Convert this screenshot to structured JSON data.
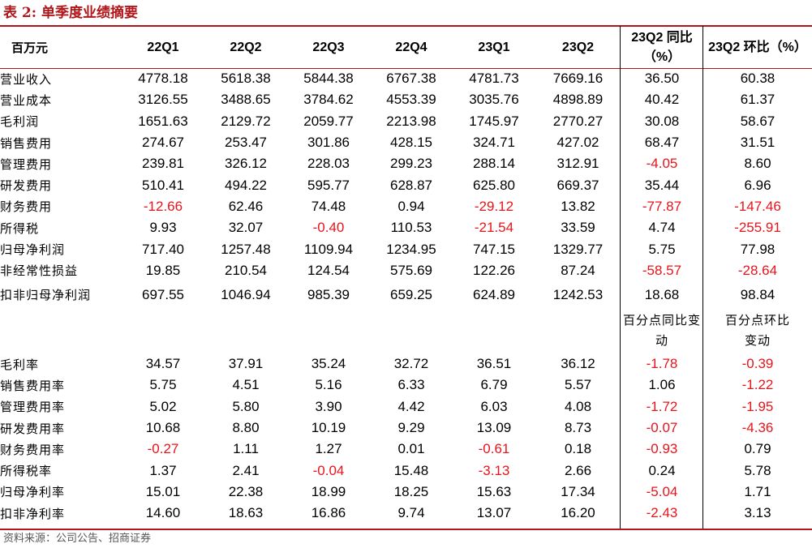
{
  "title": "表 2:  单季度业绩摘要",
  "source": "资料来源：公司公告、招商证券",
  "colors": {
    "accent": "#b0161a",
    "negative": "#e8141b"
  },
  "header": {
    "unit": "百万元",
    "cols": [
      "22Q1",
      "22Q2",
      "22Q3",
      "22Q4",
      "23Q1",
      "23Q2",
      "23Q2 同比（%）",
      "23Q2 环比（%）"
    ]
  },
  "rows": [
    {
      "label": "营业收入",
      "values": [
        "4778.18",
        "5618.38",
        "5844.38",
        "6767.38",
        "4781.73",
        "7669.16",
        "36.50",
        "60.38"
      ]
    },
    {
      "label": "营业成本",
      "values": [
        "3126.55",
        "3488.65",
        "3784.62",
        "4553.39",
        "3035.76",
        "4898.89",
        "40.42",
        "61.37"
      ]
    },
    {
      "label": "毛利润",
      "values": [
        "1651.63",
        "2129.72",
        "2059.77",
        "2213.98",
        "1745.97",
        "2770.27",
        "30.08",
        "58.67"
      ]
    },
    {
      "label": "销售费用",
      "values": [
        "274.67",
        "253.47",
        "301.86",
        "428.15",
        "324.71",
        "427.02",
        "68.47",
        "31.51"
      ]
    },
    {
      "label": "管理费用",
      "values": [
        "239.81",
        "326.12",
        "228.03",
        "299.23",
        "288.14",
        "312.91",
        "-4.05",
        "8.60"
      ]
    },
    {
      "label": "研发费用",
      "values": [
        "510.41",
        "494.22",
        "595.77",
        "628.87",
        "625.80",
        "669.37",
        "35.44",
        "6.96"
      ]
    },
    {
      "label": "财务费用",
      "values": [
        "-12.66",
        "62.46",
        "74.48",
        "0.94",
        "-29.12",
        "13.82",
        "-77.87",
        "-147.46"
      ]
    },
    {
      "label": "所得税",
      "values": [
        "9.93",
        "32.07",
        "-0.40",
        "110.53",
        "-21.54",
        "33.59",
        "4.74",
        "-255.91"
      ]
    },
    {
      "label": "归母净利润",
      "values": [
        "717.40",
        "1257.48",
        "1109.94",
        "1234.95",
        "747.15",
        "1329.77",
        "5.75",
        "77.98"
      ]
    },
    {
      "label": "非经常性损益",
      "values": [
        "19.85",
        "210.54",
        "124.54",
        "575.69",
        "122.26",
        "87.24",
        "-58.57",
        "-28.64"
      ]
    },
    {
      "label": "扣非归母净利润",
      "values": [
        "697.55",
        "1046.94",
        "985.39",
        "659.25",
        "624.89",
        "1242.53",
        "18.68",
        "98.84"
      ]
    }
  ],
  "ratio_header": {
    "yoy": "百分点同比变动",
    "qoq": "百分点环比变动"
  },
  "ratio_rows": [
    {
      "label": "毛利率",
      "values": [
        "34.57",
        "37.91",
        "35.24",
        "32.72",
        "36.51",
        "36.12",
        "-1.78",
        "-0.39"
      ]
    },
    {
      "label": "销售费用率",
      "values": [
        "5.75",
        "4.51",
        "5.16",
        "6.33",
        "6.79",
        "5.57",
        "1.06",
        "-1.22"
      ]
    },
    {
      "label": "管理费用率",
      "values": [
        "5.02",
        "5.80",
        "3.90",
        "4.42",
        "6.03",
        "4.08",
        "-1.72",
        "-1.95"
      ]
    },
    {
      "label": "研发费用率",
      "values": [
        "10.68",
        "8.80",
        "10.19",
        "9.29",
        "13.09",
        "8.73",
        "-0.07",
        "-4.36"
      ]
    },
    {
      "label": "财务费用率",
      "values": [
        "-0.27",
        "1.11",
        "1.27",
        "0.01",
        "-0.61",
        "0.18",
        "-0.93",
        "0.79"
      ]
    },
    {
      "label": "所得税率",
      "values": [
        "1.37",
        "2.41",
        "-0.04",
        "15.48",
        "-3.13",
        "2.66",
        "0.24",
        "5.78"
      ]
    },
    {
      "label": "归母净利率",
      "values": [
        "15.01",
        "22.38",
        "18.99",
        "18.25",
        "15.63",
        "17.34",
        "-5.04",
        "1.71"
      ]
    },
    {
      "label": "扣非净利率",
      "values": [
        "14.60",
        "18.63",
        "16.86",
        "9.74",
        "13.07",
        "16.20",
        "-2.43",
        "3.13"
      ]
    }
  ]
}
